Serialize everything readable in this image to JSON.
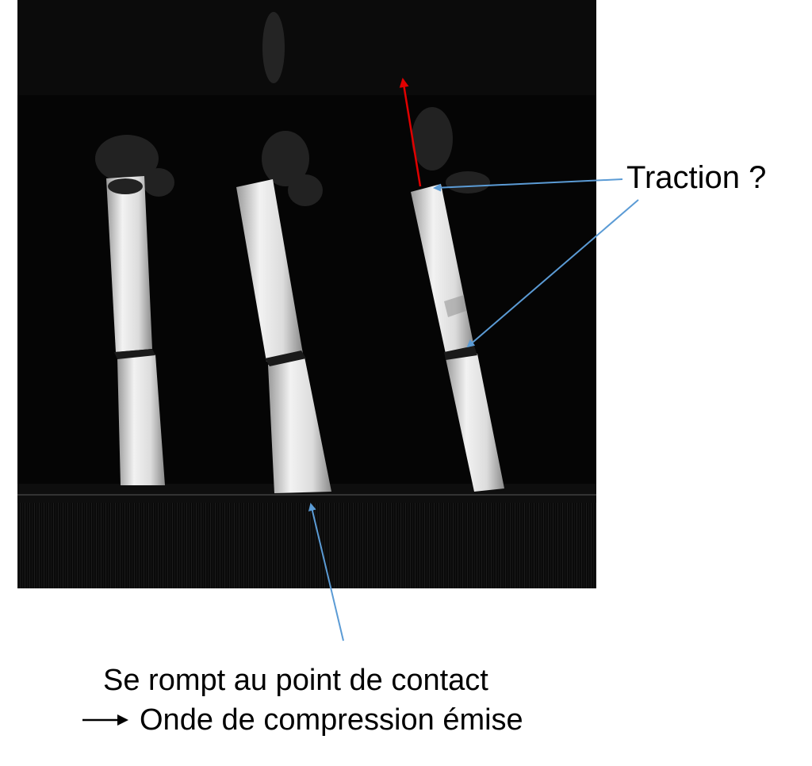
{
  "annotations": {
    "traction_label": "Traction ?",
    "caption_line_1": "Se rompt au point de contact",
    "caption_line_2": "Onde de compression émise"
  },
  "colors": {
    "photo_background": "#050505",
    "annotation_arrow_blue": "#5b9bd5",
    "annotation_arrow_red": "#e00000",
    "rod_light": "#e8e8e8"
  },
  "icons": [
    "right-arrow-icon"
  ]
}
